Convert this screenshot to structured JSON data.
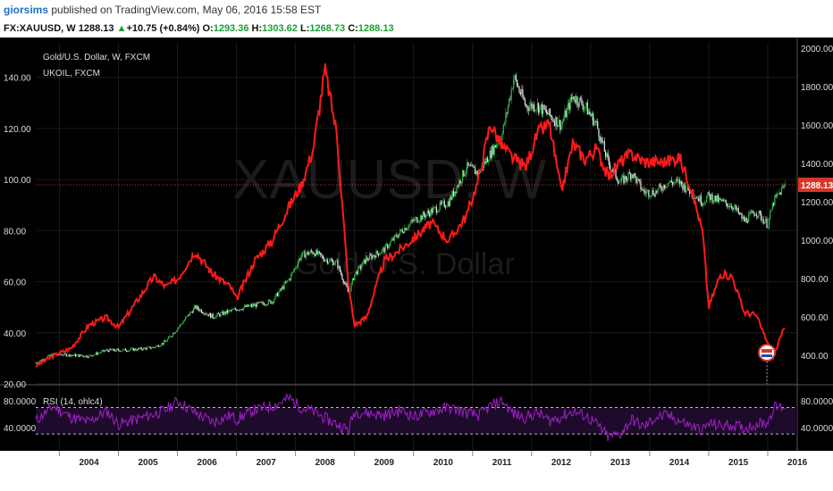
{
  "header": {
    "user": "giorsims",
    "published_text": " published on TradingView.com, May 06, 2016 15:58 EST"
  },
  "quote": {
    "symbol": "FX:XAUUSD, W",
    "last": "1288.13",
    "change": "+10.75 (+0.84%)",
    "open_label": "O:",
    "open": "1293.36",
    "high_label": "H:",
    "high": "1303.62",
    "low_label": "L:",
    "low": "1268.73",
    "close_label": "C:",
    "close": "1288.13"
  },
  "colors": {
    "background": "#000000",
    "oil_line": "#ff1a1a",
    "candle_up": "#2db84a",
    "candle_down": "#e8e8e8",
    "rsi_line": "#a020c8",
    "rsi_band": "#1e0a2a",
    "price_line": "#c0392b",
    "price_badge": "#d9362a"
  },
  "chart_data": [
    {
      "type": "line",
      "title": "Gold/U.S. Dollar, W, FXCM",
      "watermark": "XAUUSD, W",
      "watermark_sub": "Gold/U.S. Dollar",
      "secondary_label": "UKOIL, FXCM",
      "x_ticks": [
        "2004",
        "2005",
        "2006",
        "2007",
        "2008",
        "2009",
        "2010",
        "2011",
        "2012",
        "2013",
        "2014",
        "2015",
        "2016"
      ],
      "xlim": [
        2003.6,
        2016.5
      ],
      "left_axis": {
        "ticks": [
          "140.00",
          "120.00",
          "100.00",
          "80.00",
          "60.00",
          "40.00",
          "20.00"
        ],
        "ylim": [
          20,
          150
        ]
      },
      "right_axis": {
        "ticks": [
          "2000.00",
          "1800.00",
          "1600.00",
          "1400.00",
          "1200.00",
          "1000.00",
          "800.00",
          "600.00",
          "400.00"
        ],
        "ylim": [
          250,
          2000
        ]
      },
      "last_price_label": "1288.13",
      "series": [
        {
          "name": "UKOIL, FXCM",
          "axis": "left",
          "x": [
            2003.6,
            2003.9,
            2004.2,
            2004.5,
            2004.8,
            2005.0,
            2005.3,
            2005.6,
            2005.8,
            2006.0,
            2006.3,
            2006.6,
            2006.9,
            2007.0,
            2007.3,
            2007.6,
            2007.9,
            2008.1,
            2008.3,
            2008.5,
            2008.7,
            2008.9,
            2009.0,
            2009.2,
            2009.5,
            2009.8,
            2010.0,
            2010.3,
            2010.6,
            2010.9,
            2011.1,
            2011.3,
            2011.5,
            2011.7,
            2011.9,
            2012.1,
            2012.3,
            2012.5,
            2012.7,
            2012.9,
            2013.1,
            2013.3,
            2013.5,
            2013.7,
            2013.9,
            2014.1,
            2014.3,
            2014.5,
            2014.7,
            2014.9,
            2015.0,
            2015.2,
            2015.4,
            2015.6,
            2015.8,
            2016.0,
            2016.1,
            2016.3
          ],
          "values": [
            27,
            31,
            34,
            43,
            46,
            42,
            52,
            62,
            58,
            61,
            72,
            63,
            58,
            53,
            68,
            76,
            90,
            98,
            112,
            143,
            118,
            58,
            43,
            46,
            68,
            73,
            77,
            83,
            76,
            86,
            100,
            122,
            113,
            108,
            105,
            118,
            122,
            95,
            114,
            108,
            112,
            101,
            107,
            110,
            107,
            107,
            107,
            109,
            97,
            79,
            50,
            63,
            62,
            48,
            47,
            36,
            31,
            43
          ]
        },
        {
          "name": "XAUUSD",
          "axis": "right",
          "x": [
            2003.6,
            2003.9,
            2004.2,
            2004.5,
            2004.8,
            2005.0,
            2005.3,
            2005.6,
            2005.8,
            2006.0,
            2006.3,
            2006.6,
            2006.9,
            2007.0,
            2007.3,
            2007.6,
            2007.9,
            2008.1,
            2008.3,
            2008.5,
            2008.7,
            2008.9,
            2009.0,
            2009.2,
            2009.5,
            2009.8,
            2010.0,
            2010.3,
            2010.6,
            2010.9,
            2011.1,
            2011.3,
            2011.5,
            2011.7,
            2011.9,
            2012.1,
            2012.3,
            2012.5,
            2012.7,
            2012.9,
            2013.1,
            2013.3,
            2013.5,
            2013.7,
            2013.9,
            2014.1,
            2014.3,
            2014.5,
            2014.7,
            2014.9,
            2015.0,
            2015.2,
            2015.4,
            2015.6,
            2015.8,
            2016.0,
            2016.1,
            2016.3
          ],
          "values": [
            360,
            405,
            400,
            395,
            425,
            425,
            430,
            440,
            470,
            540,
            650,
            600,
            630,
            640,
            660,
            680,
            800,
            920,
            940,
            900,
            880,
            720,
            820,
            900,
            950,
            1050,
            1100,
            1150,
            1200,
            1380,
            1350,
            1450,
            1550,
            1850,
            1700,
            1700,
            1650,
            1600,
            1750,
            1700,
            1600,
            1400,
            1300,
            1350,
            1250,
            1250,
            1300,
            1300,
            1250,
            1200,
            1230,
            1200,
            1180,
            1100,
            1150,
            1080,
            1200,
            1290
          ]
        }
      ]
    },
    {
      "type": "line",
      "title": "RSI (14, ohlc4)",
      "x_ticks": [
        "2004",
        "2005",
        "2006",
        "2007",
        "2008",
        "2009",
        "2010",
        "2011",
        "2012",
        "2013",
        "2014",
        "2015",
        "2016"
      ],
      "y_ticks": [
        "80.0000",
        "40.0000"
      ],
      "ylim": [
        10,
        95
      ],
      "band": [
        30,
        70
      ],
      "series": [
        {
          "name": "RSI (14, ohlc4)",
          "x": [
            2003.6,
            2003.9,
            2004.2,
            2004.5,
            2004.8,
            2005.0,
            2005.3,
            2005.6,
            2005.8,
            2006.0,
            2006.3,
            2006.6,
            2006.9,
            2007.0,
            2007.3,
            2007.6,
            2007.9,
            2008.1,
            2008.3,
            2008.5,
            2008.7,
            2008.9,
            2009.0,
            2009.2,
            2009.5,
            2009.8,
            2010.0,
            2010.3,
            2010.6,
            2010.9,
            2011.1,
            2011.3,
            2011.5,
            2011.7,
            2011.9,
            2012.1,
            2012.3,
            2012.5,
            2012.7,
            2012.9,
            2013.1,
            2013.3,
            2013.5,
            2013.7,
            2013.9,
            2014.1,
            2014.3,
            2014.5,
            2014.7,
            2014.9,
            2015.0,
            2015.2,
            2015.4,
            2015.6,
            2015.8,
            2016.0,
            2016.1,
            2016.3
          ],
          "values": [
            50,
            72,
            55,
            48,
            65,
            45,
            52,
            60,
            66,
            80,
            62,
            48,
            58,
            52,
            66,
            72,
            84,
            70,
            64,
            54,
            45,
            36,
            64,
            62,
            58,
            66,
            56,
            64,
            70,
            62,
            58,
            72,
            80,
            60,
            55,
            62,
            50,
            56,
            64,
            58,
            45,
            25,
            30,
            52,
            40,
            55,
            58,
            50,
            42,
            36,
            46,
            42,
            44,
            38,
            45,
            48,
            70,
            72
          ]
        }
      ]
    }
  ]
}
